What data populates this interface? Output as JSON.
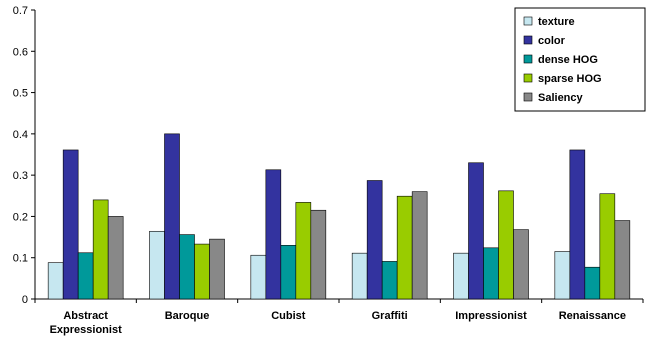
{
  "chart_data": {
    "type": "bar",
    "title": "",
    "xlabel": "",
    "ylabel": "",
    "ylim": [
      0,
      0.7
    ],
    "yticks": [
      "0",
      "0.1",
      "0.2",
      "0.3",
      "0.4",
      "0.5",
      "0.6",
      "0.7"
    ],
    "grid": false,
    "legend_position": "top-right",
    "categories": [
      [
        "Abstract",
        "Expressionist"
      ],
      [
        "Baroque"
      ],
      [
        "Cubist"
      ],
      [
        "Graffiti"
      ],
      [
        "Impressionist"
      ],
      [
        "Renaissance"
      ]
    ],
    "series": [
      {
        "name": "texture",
        "color": "#c6e7f0",
        "values": [
          0.088,
          0.164,
          0.106,
          0.111,
          0.111,
          0.115
        ]
      },
      {
        "name": "color",
        "color": "#33339f",
        "values": [
          0.361,
          0.4,
          0.313,
          0.287,
          0.33,
          0.361
        ]
      },
      {
        "name": "dense HOG",
        "color": "#00999a",
        "values": [
          0.112,
          0.156,
          0.13,
          0.091,
          0.124,
          0.077
        ]
      },
      {
        "name": "sparse HOG",
        "color": "#99cc00",
        "values": [
          0.24,
          0.133,
          0.234,
          0.249,
          0.262,
          0.255
        ]
      },
      {
        "name": "Saliency",
        "color": "#888888",
        "values": [
          0.2,
          0.145,
          0.215,
          0.26,
          0.168,
          0.19
        ]
      }
    ]
  }
}
